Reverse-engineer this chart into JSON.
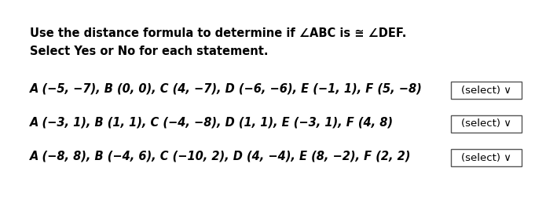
{
  "title_line1": "Use the distance formula to determine if ∠ABC is ≅ ∠DEF.",
  "title_line2": "Select Yes or No for each statement.",
  "row1": "A (−5, −7), B (0, 0), C (4, −7), D (−6, −6), E (−1, 1), F (5, −8)",
  "row2": "A (−3, 1), B (1, 1), C (−4, −8), D (1, 1), E (−3, 1), F (4, 8)",
  "row3": "A (−8, 8), B (−4, 6), C (−10, 2), D (4, −4), E (8, −2), F (2, 2)",
  "select_label": "(select) ∨",
  "bg_color": "#ffffff",
  "text_color": "#000000",
  "box_color": "#555555",
  "font_size_title": 10.5,
  "font_size_row": 10.5,
  "font_size_select": 9.5,
  "fig_width": 6.95,
  "fig_height": 2.83,
  "dpi": 100
}
